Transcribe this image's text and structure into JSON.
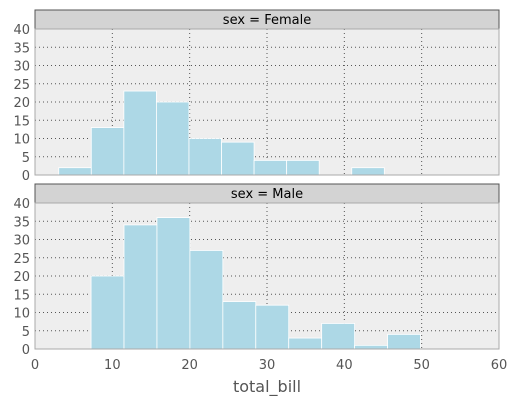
{
  "chart_data": {
    "type": "bar",
    "title": "",
    "xlabel": "total_bill",
    "xlim": [
      0,
      60
    ],
    "xticks": [
      0,
      10,
      20,
      30,
      40,
      50,
      60
    ],
    "ylim": [
      0,
      40
    ],
    "yticks": [
      0,
      5,
      10,
      15,
      20,
      25,
      30,
      35,
      40
    ],
    "grid": true,
    "bar_color": "#add8e6",
    "panel_bg": "#eeeeee",
    "strip_bg": "#d3d3d3",
    "panels": [
      {
        "label": "sex = Female",
        "bins": [
          {
            "x0": 3.07,
            "x1": 7.28,
            "count": 2
          },
          {
            "x0": 7.28,
            "x1": 11.49,
            "count": 13
          },
          {
            "x0": 11.49,
            "x1": 15.7,
            "count": 23
          },
          {
            "x0": 15.7,
            "x1": 19.91,
            "count": 20
          },
          {
            "x0": 19.91,
            "x1": 24.12,
            "count": 10
          },
          {
            "x0": 24.12,
            "x1": 28.33,
            "count": 9
          },
          {
            "x0": 28.33,
            "x1": 32.54,
            "count": 4
          },
          {
            "x0": 32.54,
            "x1": 36.75,
            "count": 4
          },
          {
            "x0": 36.75,
            "x1": 40.96,
            "count": 0
          },
          {
            "x0": 40.96,
            "x1": 45.17,
            "count": 2
          }
        ]
      },
      {
        "label": "sex = Male",
        "bins": [
          {
            "x0": 7.25,
            "x1": 11.51,
            "count": 20
          },
          {
            "x0": 11.51,
            "x1": 15.77,
            "count": 34
          },
          {
            "x0": 15.77,
            "x1": 20.03,
            "count": 36
          },
          {
            "x0": 20.03,
            "x1": 24.29,
            "count": 27
          },
          {
            "x0": 24.29,
            "x1": 28.55,
            "count": 13
          },
          {
            "x0": 28.55,
            "x1": 32.81,
            "count": 12
          },
          {
            "x0": 32.81,
            "x1": 37.07,
            "count": 3
          },
          {
            "x0": 37.07,
            "x1": 41.33,
            "count": 7
          },
          {
            "x0": 41.33,
            "x1": 45.59,
            "count": 1
          },
          {
            "x0": 45.59,
            "x1": 49.85,
            "count": 4
          }
        ]
      }
    ]
  }
}
